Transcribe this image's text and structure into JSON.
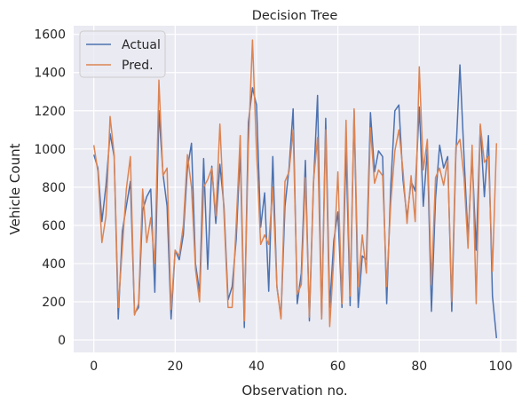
{
  "chart_data": {
    "type": "line",
    "title": "Decision Tree",
    "xlabel": "Observation no.",
    "ylabel": "Vehicle Count",
    "xlim": [
      -4.95,
      103.95
    ],
    "ylim": [
      -65,
      1645
    ],
    "xticks": [
      0,
      20,
      40,
      60,
      80,
      100
    ],
    "yticks": [
      0,
      200,
      400,
      600,
      800,
      1000,
      1200,
      1400,
      1600
    ],
    "grid": true,
    "legend_position": "top-left",
    "x": [
      0,
      1,
      2,
      3,
      4,
      5,
      6,
      7,
      8,
      9,
      10,
      11,
      12,
      13,
      14,
      15,
      16,
      17,
      18,
      19,
      20,
      21,
      22,
      23,
      24,
      25,
      26,
      27,
      28,
      29,
      30,
      31,
      32,
      33,
      34,
      35,
      36,
      37,
      38,
      39,
      40,
      41,
      42,
      43,
      44,
      45,
      46,
      47,
      48,
      49,
      50,
      51,
      52,
      53,
      54,
      55,
      56,
      57,
      58,
      59,
      60,
      61,
      62,
      63,
      64,
      65,
      66,
      67,
      68,
      69,
      70,
      71,
      72,
      73,
      74,
      75,
      76,
      77,
      78,
      79,
      80,
      81,
      82,
      83,
      84,
      85,
      86,
      87,
      88,
      89,
      90,
      91,
      92,
      93,
      94,
      95,
      96,
      97,
      98,
      99
    ],
    "series": [
      {
        "name": "Actual",
        "color": "#4c72b0",
        "values": [
          970,
          900,
          620,
          810,
          1080,
          960,
          110,
          570,
          700,
          830,
          140,
          170,
          680,
          750,
          790,
          250,
          1200,
          870,
          700,
          110,
          470,
          420,
          550,
          900,
          1030,
          400,
          250,
          950,
          370,
          910,
          610,
          920,
          700,
          210,
          280,
          530,
          990,
          65,
          1140,
          1320,
          1230,
          590,
          770,
          255,
          960,
          280,
          120,
          700,
          900,
          1210,
          190,
          350,
          940,
          100,
          810,
          1280,
          110,
          1160,
          170,
          520,
          670,
          170,
          1000,
          180,
          1200,
          170,
          440,
          420,
          1190,
          880,
          990,
          960,
          190,
          810,
          1200,
          1230,
          840,
          640,
          830,
          780,
          1220,
          700,
          1000,
          150,
          740,
          1020,
          900,
          960,
          150,
          970,
          1440,
          960,
          530,
          960,
          470,
          1120,
          750,
          1070,
          230,
          10
        ]
      },
      {
        "name": "Pred.",
        "color": "#dd8452",
        "values": [
          1020,
          880,
          510,
          650,
          1170,
          970,
          170,
          480,
          790,
          960,
          130,
          190,
          790,
          510,
          640,
          400,
          1360,
          860,
          900,
          160,
          470,
          440,
          600,
          970,
          800,
          370,
          200,
          800,
          840,
          900,
          650,
          1130,
          660,
          170,
          170,
          610,
          1070,
          100,
          1020,
          1570,
          980,
          500,
          550,
          500,
          800,
          280,
          110,
          830,
          880,
          1100,
          240,
          290,
          850,
          120,
          830,
          1060,
          110,
          1100,
          70,
          430,
          880,
          190,
          1150,
          230,
          1210,
          280,
          550,
          350,
          1110,
          820,
          890,
          860,
          280,
          720,
          990,
          1100,
          890,
          610,
          860,
          620,
          1430,
          890,
          1050,
          290,
          850,
          900,
          810,
          940,
          200,
          1010,
          1050,
          850,
          480,
          1020,
          190,
          1130,
          930,
          960,
          360,
          1030
        ]
      }
    ]
  }
}
